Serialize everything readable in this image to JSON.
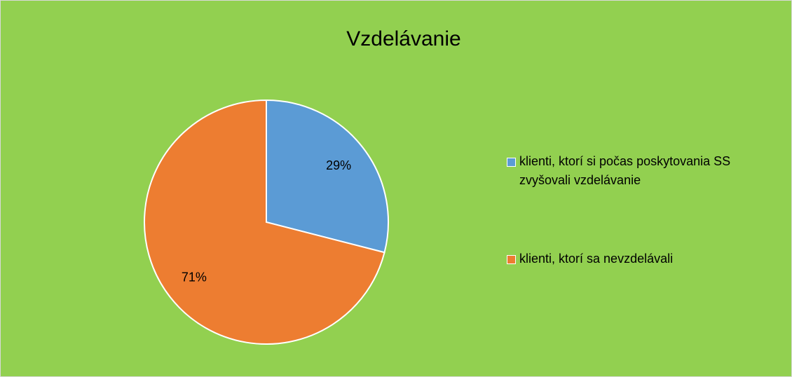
{
  "chart_data": {
    "type": "pie",
    "title": "Vzdelávanie",
    "categories": [
      "klienti, ktorí si počas poskytovania SS zvyšovali vzdelávanie",
      "klienti, ktorí sa nevzdelávali"
    ],
    "values": [
      29,
      71
    ],
    "value_labels": [
      "29%",
      "71%"
    ],
    "colors": [
      "#5b9bd5",
      "#ed7d31"
    ],
    "legend": "right"
  }
}
